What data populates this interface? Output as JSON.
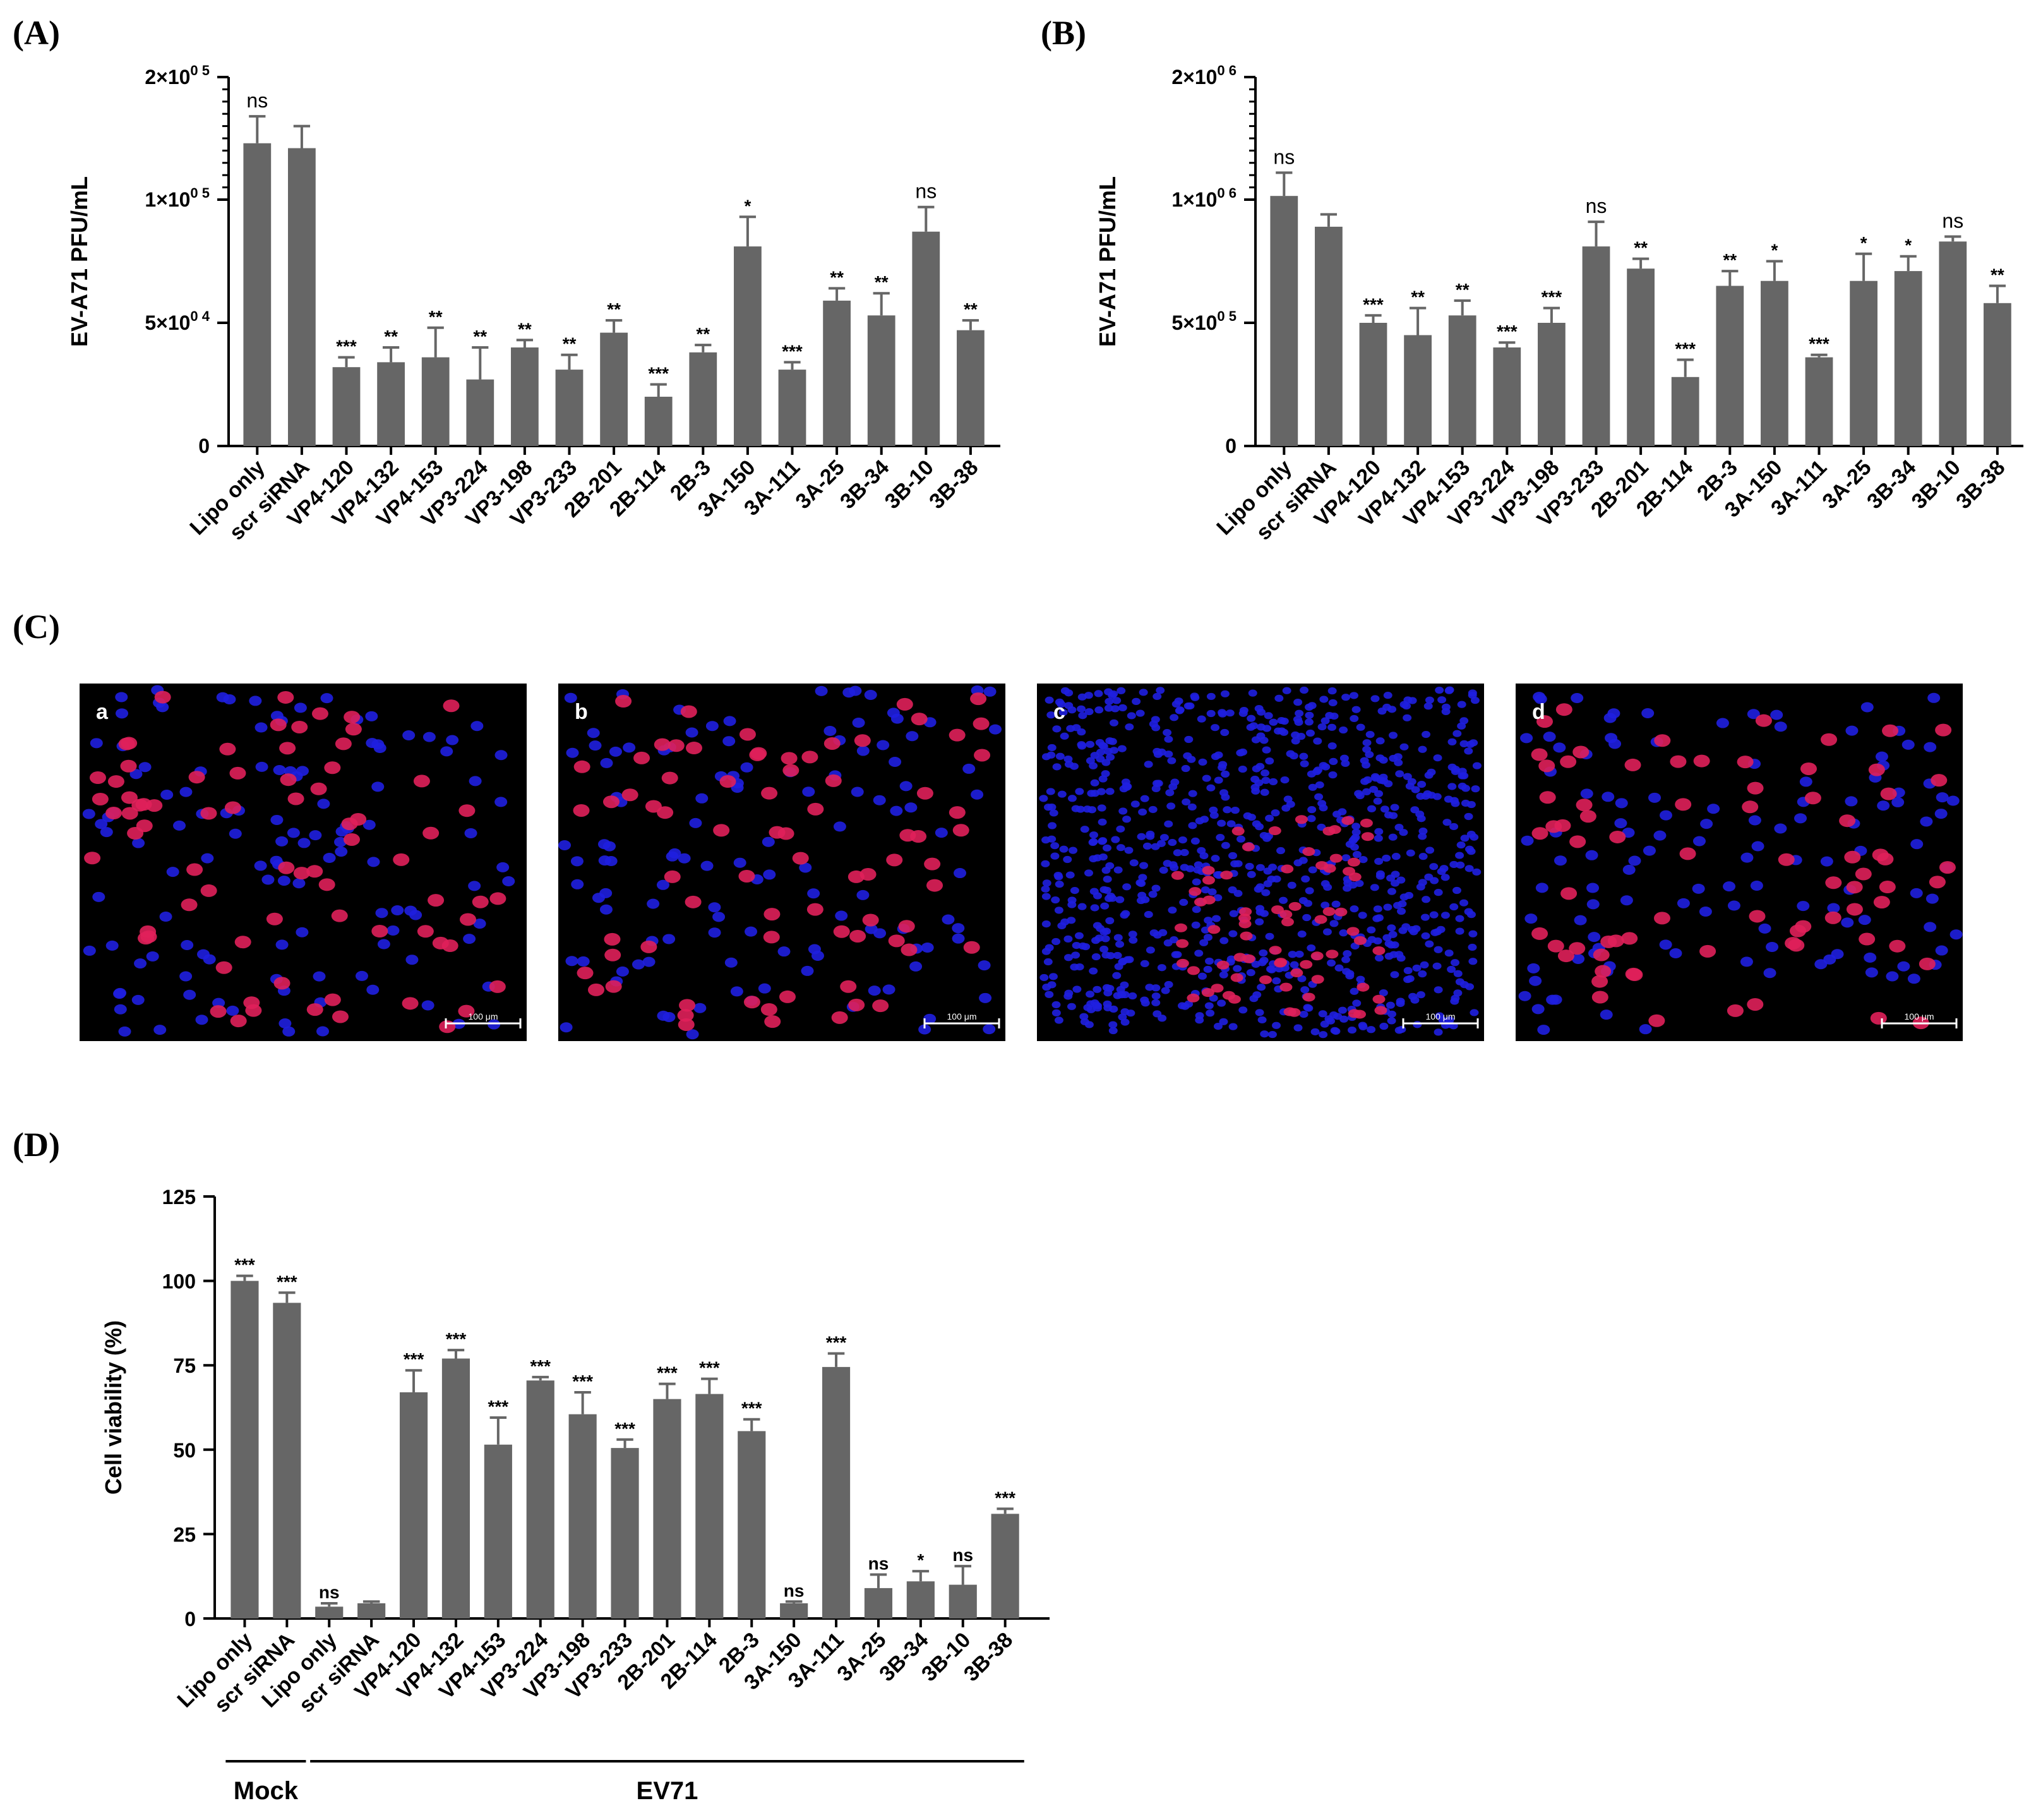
{
  "panels": {
    "A": "(A)",
    "B": "(B)",
    "C": "(C)",
    "D": "(D)"
  },
  "colors": {
    "bar": "#666666",
    "axis": "#000000",
    "micro_background": "#000000",
    "nucleus": "#1f1fe0",
    "infected": "#e0205a"
  },
  "chart_data": [
    {
      "id": "A",
      "type": "bar",
      "ylabel": "EV-A71 PFU/mL",
      "ylim": [
        0,
        200000
      ],
      "ytick_values": [
        0,
        50000,
        100000,
        200000
      ],
      "ytick_labels": [
        {
          "mantissa": "0",
          "exponent": ""
        },
        {
          "mantissa": "5×10",
          "exponent": "0 4"
        },
        {
          "mantissa": "1×10",
          "exponent": "0 5"
        },
        {
          "mantissa": "2×10",
          "exponent": "0 5"
        }
      ],
      "axis_break": true,
      "categories": [
        "Lipo only",
        "scr siRNA",
        "VP4-120",
        "VP4-132",
        "VP4-153",
        "VP3-224",
        "VP3-198",
        "VP3-233",
        "2B-201",
        "2B-114",
        "2B-3",
        "3A-150",
        "3A-111",
        "3A-25",
        "3B-34",
        "3B-10",
        "3B-38"
      ],
      "values": [
        146000,
        142000,
        32000,
        34000,
        36000,
        27000,
        40000,
        31000,
        46000,
        20000,
        38000,
        81000,
        31000,
        59000,
        53000,
        87000,
        47000
      ],
      "errors": [
        22000,
        18000,
        4000,
        6000,
        12000,
        13000,
        3000,
        6000,
        5000,
        5000,
        3000,
        12000,
        3000,
        5000,
        9000,
        10000,
        4000
      ],
      "significance": [
        "ns",
        "",
        "***",
        "**",
        "**",
        "**",
        "**",
        "**",
        "**",
        "***",
        "**",
        "*",
        "***",
        "**",
        "**",
        "ns",
        "**"
      ]
    },
    {
      "id": "B",
      "type": "bar",
      "ylabel": "EV-A71 PFU/mL",
      "ylim": [
        0,
        2000000
      ],
      "ytick_values": [
        0,
        500000,
        1000000,
        2000000
      ],
      "ytick_labels": [
        {
          "mantissa": "0",
          "exponent": ""
        },
        {
          "mantissa": "5×10",
          "exponent": "0 5"
        },
        {
          "mantissa": "1×10",
          "exponent": "0 6"
        },
        {
          "mantissa": "2×10",
          "exponent": "0 6"
        }
      ],
      "axis_break": true,
      "categories": [
        "Lipo only",
        "scr siRNA",
        "VP4-120",
        "VP4-132",
        "VP4-153",
        "VP3-224",
        "VP3-198",
        "VP3-233",
        "2B-201",
        "2B-114",
        "2B-3",
        "3A-150",
        "3A-111",
        "3A-25",
        "3B-34",
        "3B-10",
        "3B-38"
      ],
      "values": [
        1030000,
        890000,
        500000,
        450000,
        530000,
        400000,
        500000,
        810000,
        720000,
        280000,
        650000,
        670000,
        360000,
        670000,
        710000,
        830000,
        580000
      ],
      "errors": [
        190000,
        50000,
        30000,
        110000,
        60000,
        20000,
        60000,
        100000,
        40000,
        70000,
        60000,
        80000,
        10000,
        110000,
        60000,
        20000,
        70000
      ],
      "significance": [
        "ns",
        "",
        "***",
        "**",
        "**",
        "***",
        "***",
        "ns",
        "**",
        "***",
        "**",
        "*",
        "***",
        "*",
        "*",
        "ns",
        "**"
      ]
    },
    {
      "id": "D",
      "type": "bar",
      "ylabel": "Cell viability (%)",
      "ylim": [
        0,
        125
      ],
      "yticks": [
        0,
        25,
        50,
        75,
        100,
        125
      ],
      "categories": [
        "Lipo only",
        "scr siRNA",
        "Lipo only",
        "scr siRNA",
        "VP4-120",
        "VP4-132",
        "VP4-153",
        "VP3-224",
        "VP3-198",
        "VP3-233",
        "2B-201",
        "2B-114",
        "2B-3",
        "3A-150",
        "3A-111",
        "3A-25",
        "3B-34",
        "3B-10",
        "3B-38"
      ],
      "values": [
        100,
        93.5,
        3.5,
        4.5,
        67,
        77,
        51.5,
        70.5,
        60.5,
        50.5,
        65,
        66.5,
        55.5,
        4.5,
        74.5,
        9,
        11,
        10,
        31
      ],
      "errors": [
        1.5,
        3,
        1,
        0.5,
        6.5,
        2.5,
        8,
        1,
        6.5,
        2.5,
        4.5,
        4.5,
        3.5,
        0.5,
        4,
        4,
        3,
        5.5,
        1.5
      ],
      "significance": [
        "***",
        "***",
        "ns",
        "",
        "***",
        "***",
        "***",
        "***",
        "***",
        "***",
        "***",
        "***",
        "***",
        "ns",
        "***",
        "ns",
        "*",
        "ns",
        "***"
      ],
      "groups": [
        {
          "label": "Mock",
          "from": 0,
          "to": 1
        },
        {
          "label": "EV71",
          "from": 2,
          "to": 18
        }
      ]
    }
  ],
  "micrographs": [
    {
      "letter": "a",
      "scale": "100 μm"
    },
    {
      "letter": "b",
      "scale": "100 μm"
    },
    {
      "letter": "c",
      "scale": "100 μm"
    },
    {
      "letter": "d",
      "scale": "100 μm"
    }
  ]
}
